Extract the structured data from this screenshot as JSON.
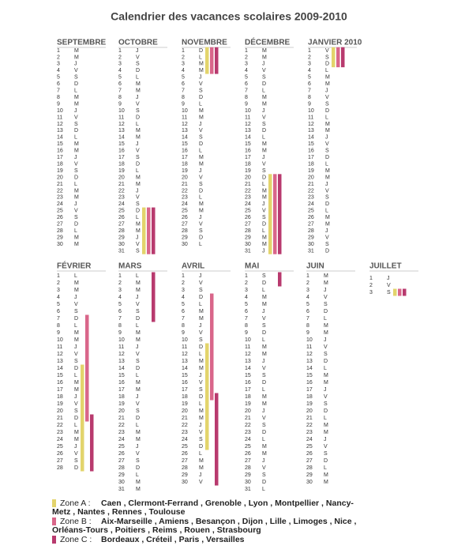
{
  "title": "Calendrier des vacances scolaires 2009-2010",
  "months": [
    {
      "name": "SEPTEMBRE",
      "days": [
        1,
        2,
        3,
        4,
        5,
        6,
        7,
        8,
        9,
        10,
        11,
        12,
        13,
        14,
        15,
        16,
        17,
        18,
        19,
        20,
        21,
        22,
        23,
        24,
        25,
        26,
        27,
        28,
        29,
        30
      ],
      "weekdays": [
        "M",
        "M",
        "J",
        "V",
        "S",
        "D",
        "L",
        "M",
        "M",
        "J",
        "V",
        "S",
        "D",
        "L",
        "M",
        "M",
        "J",
        "V",
        "S",
        "D",
        "L",
        "M",
        "M",
        "J",
        "V",
        "S",
        "D",
        "L",
        "M",
        "M"
      ]
    },
    {
      "name": "OCTOBRE",
      "days": [
        1,
        2,
        3,
        4,
        5,
        6,
        7,
        8,
        9,
        10,
        11,
        12,
        13,
        14,
        15,
        16,
        17,
        18,
        19,
        20,
        21,
        22,
        23,
        24,
        25,
        26,
        27,
        28,
        29,
        30,
        31
      ],
      "weekdays": [
        "J",
        "V",
        "S",
        "D",
        "L",
        "M",
        "M",
        "J",
        "V",
        "S",
        "D",
        "L",
        "M",
        "M",
        "J",
        "V",
        "S",
        "D",
        "L",
        "M",
        "M",
        "J",
        "V",
        "S",
        "D",
        "L",
        "M",
        "M",
        "J",
        "V",
        "S"
      ],
      "zone_a": [
        25,
        31
      ],
      "zone_b": [
        25,
        31
      ],
      "zone_c": [
        25,
        31
      ]
    },
    {
      "name": "NOVEMBRE",
      "days": [
        1,
        2,
        3,
        4,
        5,
        6,
        7,
        8,
        9,
        10,
        11,
        12,
        13,
        14,
        15,
        16,
        17,
        18,
        19,
        20,
        21,
        22,
        23,
        24,
        25,
        26,
        27,
        28,
        29,
        30
      ],
      "weekdays": [
        "D",
        "L",
        "M",
        "M",
        "J",
        "V",
        "S",
        "D",
        "L",
        "M",
        "M",
        "J",
        "V",
        "S",
        "D",
        "L",
        "M",
        "M",
        "J",
        "V",
        "S",
        "D",
        "L",
        "M",
        "M",
        "J",
        "V",
        "S",
        "D",
        "L"
      ],
      "zone_a": [
        1,
        4
      ],
      "zone_b": [
        1,
        4
      ],
      "zone_c": [
        1,
        4
      ]
    },
    {
      "name": "DÉCEMBRE",
      "days": [
        1,
        2,
        3,
        4,
        5,
        6,
        7,
        8,
        9,
        10,
        11,
        12,
        13,
        14,
        15,
        16,
        17,
        18,
        19,
        20,
        21,
        22,
        23,
        24,
        25,
        26,
        27,
        28,
        29,
        30,
        31
      ],
      "weekdays": [
        "M",
        "M",
        "J",
        "V",
        "S",
        "D",
        "L",
        "M",
        "M",
        "J",
        "V",
        "S",
        "D",
        "L",
        "M",
        "M",
        "J",
        "V",
        "S",
        "D",
        "L",
        "M",
        "M",
        "J",
        "V",
        "S",
        "D",
        "L",
        "M",
        "M",
        "J"
      ],
      "zone_a": [
        20,
        31
      ],
      "zone_b": [
        20,
        31
      ],
      "zone_c": [
        20,
        31
      ]
    },
    {
      "name": "JANVIER 2010",
      "days": [
        1,
        2,
        3,
        4,
        5,
        6,
        7,
        8,
        9,
        10,
        11,
        12,
        13,
        14,
        15,
        16,
        17,
        18,
        19,
        20,
        21,
        22,
        23,
        24,
        25,
        26,
        27,
        28,
        29,
        30,
        31
      ],
      "weekdays": [
        "V",
        "S",
        "D",
        "L",
        "M",
        "M",
        "J",
        "V",
        "S",
        "D",
        "L",
        "M",
        "M",
        "J",
        "V",
        "S",
        "D",
        "L",
        "M",
        "M",
        "J",
        "V",
        "S",
        "D",
        "L",
        "M",
        "M",
        "J",
        "V",
        "S",
        "D"
      ],
      "zone_a": [
        1,
        3
      ],
      "zone_b": [
        1,
        3
      ],
      "zone_c": [
        1,
        3
      ]
    },
    {
      "name": "FÉVRIER",
      "days": [
        1,
        2,
        3,
        4,
        5,
        6,
        7,
        8,
        9,
        10,
        11,
        12,
        13,
        14,
        15,
        16,
        17,
        18,
        19,
        20,
        21,
        22,
        23,
        24,
        25,
        26,
        27,
        28
      ],
      "weekdays": [
        "L",
        "M",
        "M",
        "J",
        "V",
        "S",
        "D",
        "L",
        "M",
        "M",
        "J",
        "V",
        "S",
        "D",
        "L",
        "M",
        "M",
        "J",
        "V",
        "S",
        "D",
        "L",
        "M",
        "M",
        "J",
        "V",
        "S",
        "D"
      ],
      "zone_a": [
        14,
        28
      ],
      "zone_b": [
        7,
        21
      ],
      "zone_c": [
        21,
        28
      ]
    },
    {
      "name": "MARS",
      "days": [
        1,
        2,
        3,
        4,
        5,
        6,
        7,
        8,
        9,
        10,
        11,
        12,
        13,
        14,
        15,
        16,
        17,
        18,
        19,
        20,
        21,
        22,
        23,
        24,
        25,
        26,
        27,
        28,
        29,
        30,
        31
      ],
      "weekdays": [
        "L",
        "M",
        "M",
        "J",
        "V",
        "S",
        "D",
        "L",
        "M",
        "M",
        "J",
        "V",
        "S",
        "D",
        "L",
        "M",
        "M",
        "J",
        "V",
        "S",
        "D",
        "L",
        "M",
        "M",
        "J",
        "V",
        "S",
        "D",
        "L",
        "M",
        "M"
      ],
      "zone_c": [
        1,
        7
      ]
    },
    {
      "name": "AVRIL",
      "days": [
        1,
        2,
        3,
        4,
        5,
        6,
        7,
        8,
        9,
        10,
        11,
        12,
        13,
        14,
        15,
        16,
        17,
        18,
        19,
        20,
        21,
        22,
        23,
        24,
        25,
        26,
        27,
        28,
        29,
        30
      ],
      "weekdays": [
        "J",
        "V",
        "S",
        "D",
        "L",
        "M",
        "M",
        "J",
        "V",
        "S",
        "D",
        "L",
        "M",
        "M",
        "J",
        "V",
        "S",
        "D",
        "L",
        "M",
        "M",
        "J",
        "V",
        "S",
        "D",
        "L",
        "M",
        "M",
        "J",
        "V"
      ],
      "zone_a": [
        11,
        25
      ],
      "zone_b": [
        4,
        18
      ],
      "zone_c": [
        18,
        30
      ]
    },
    {
      "name": "MAI",
      "days": [
        1,
        2,
        3,
        4,
        5,
        6,
        7,
        8,
        9,
        10,
        11,
        12,
        13,
        14,
        15,
        16,
        17,
        18,
        19,
        20,
        21,
        22,
        23,
        24,
        25,
        26,
        27,
        28,
        29,
        30,
        31
      ],
      "weekdays": [
        "S",
        "D",
        "L",
        "M",
        "M",
        "J",
        "V",
        "S",
        "D",
        "L",
        "M",
        "M",
        "J",
        "V",
        "S",
        "D",
        "L",
        "M",
        "M",
        "J",
        "V",
        "S",
        "D",
        "L",
        "M",
        "M",
        "J",
        "V",
        "S",
        "D",
        "L"
      ],
      "zone_c": [
        1,
        2
      ]
    },
    {
      "name": "JUIN",
      "days": [
        1,
        2,
        3,
        4,
        5,
        6,
        7,
        8,
        9,
        10,
        11,
        12,
        13,
        14,
        15,
        16,
        17,
        18,
        19,
        20,
        21,
        22,
        23,
        24,
        25,
        26,
        27,
        28,
        29,
        30
      ],
      "weekdays": [
        "M",
        "M",
        "J",
        "V",
        "S",
        "D",
        "L",
        "M",
        "M",
        "J",
        "V",
        "S",
        "D",
        "L",
        "M",
        "M",
        "J",
        "V",
        "S",
        "D",
        "L",
        "M",
        "M",
        "J",
        "V",
        "S",
        "D",
        "L",
        "M",
        "M"
      ]
    },
    {
      "name": "JUILLET",
      "days": [
        1,
        2,
        3
      ],
      "weekdays": [
        "J",
        "V",
        "S"
      ],
      "zone_a": [
        3,
        3
      ],
      "zone_b": [
        3,
        3
      ],
      "zone_c": [
        3,
        3
      ]
    }
  ],
  "legend": [
    {
      "label": "Zone A :",
      "color": "#e3d46c",
      "lines": [
        "Caen ,  Clermont-Ferrand ,  Grenoble ,  Lyon ,  Montpellier ,  Nancy-",
        "Metz ,  Nantes ,  Rennes ,  Toulouse"
      ]
    },
    {
      "label": "Zone B :",
      "color": "#d9668a",
      "lines": [
        "Aix-Marseille ,  Amiens ,  Besançon ,  Dijon ,  Lille ,  Limoges ,  Nice ,",
        "Orléans-Tours ,  Poitiers ,  Reims ,  Rouen ,  Strasbourg"
      ]
    },
    {
      "label": "Zone C :",
      "color": "#b83a6e",
      "lines": [
        "Bordeaux ,  Créteil ,  Paris ,  Versailles"
      ]
    }
  ]
}
